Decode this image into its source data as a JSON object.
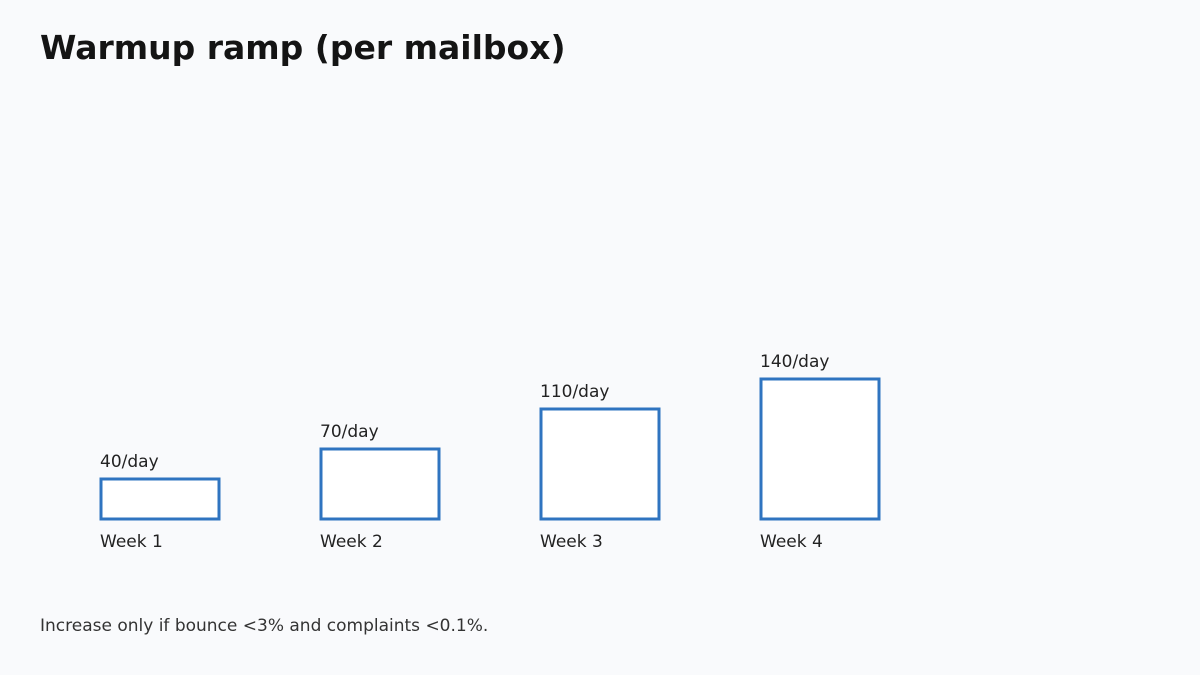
{
  "colors": {
    "background": "#f9fafc",
    "bar_stroke": "#2f74c0",
    "bar_fill": "#ffffff",
    "title": "#141414",
    "text": "#222222"
  },
  "chart_data": {
    "type": "bar",
    "title": "Warmup ramp (per mailbox)",
    "xlabel": "",
    "ylabel": "",
    "grid": false,
    "categories": [
      "Week 1",
      "Week 2",
      "Week 3",
      "Week 4"
    ],
    "values": [
      40,
      70,
      110,
      140
    ],
    "value_labels": [
      "40/day",
      "70/day",
      "110/day",
      "140/day"
    ],
    "unit": "/day",
    "ylim": [
      0,
      140
    ]
  },
  "footnote": "Increase only if bounce <3% and complaints <0.1%."
}
